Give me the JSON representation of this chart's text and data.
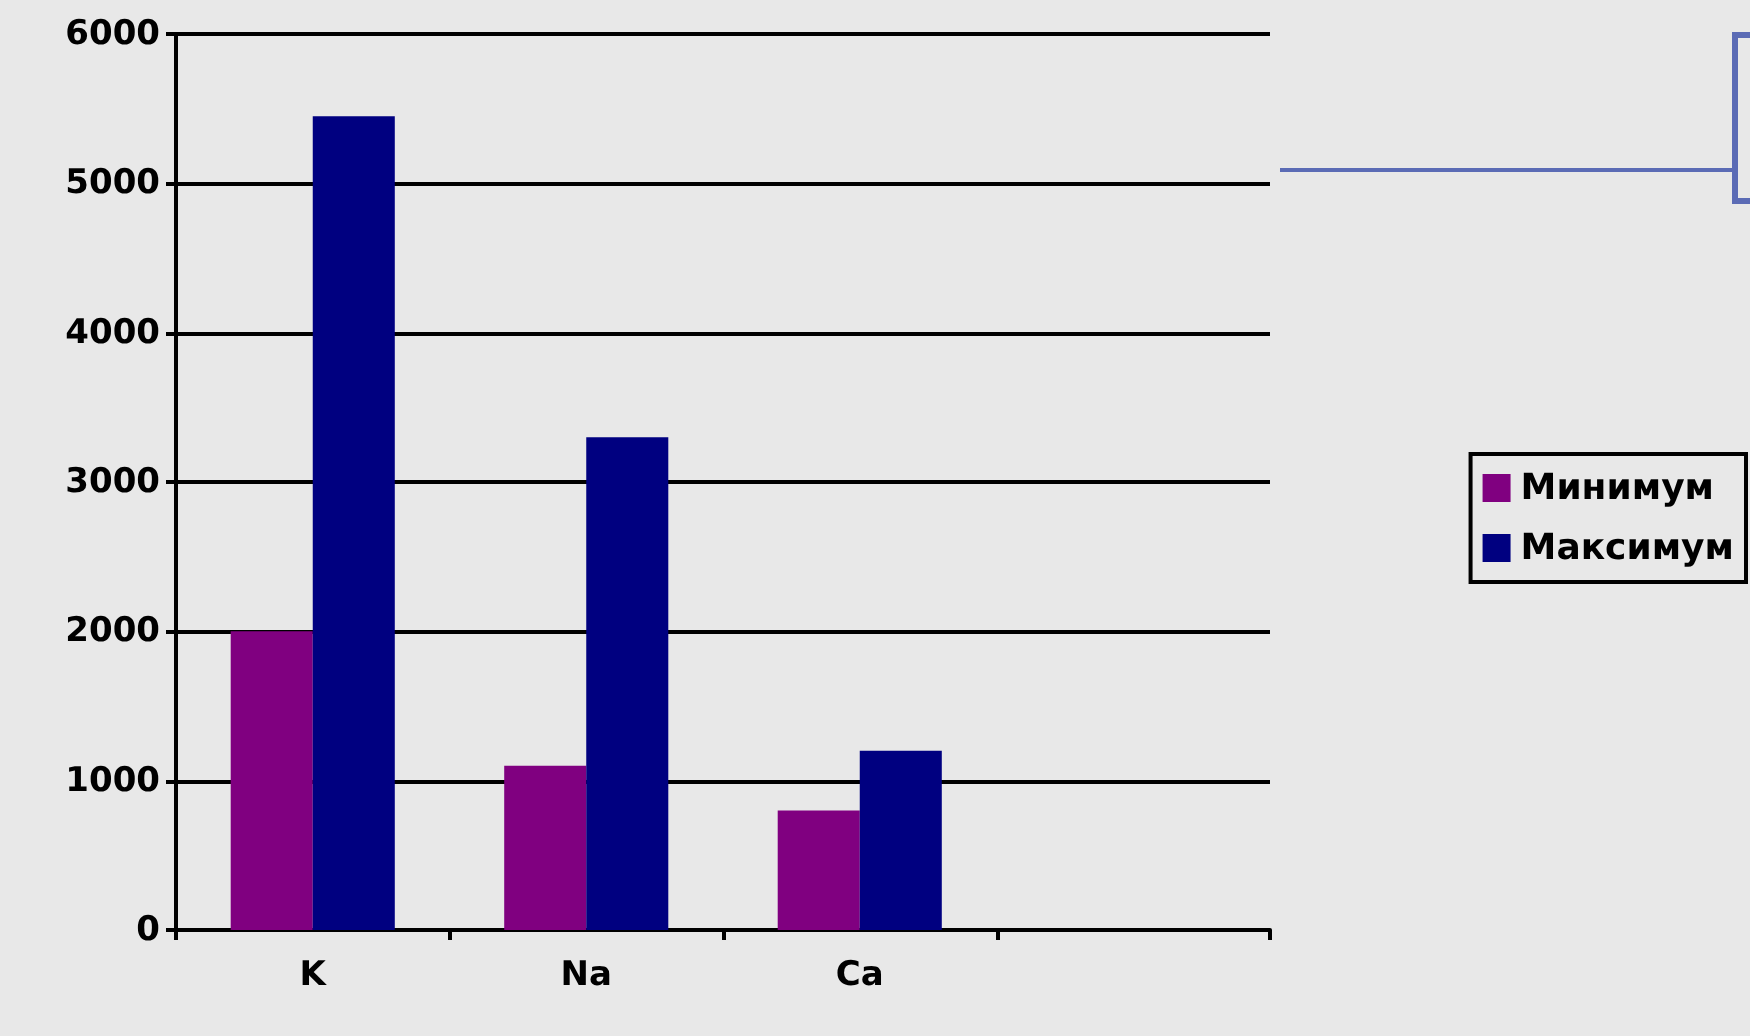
{
  "chart_data": {
    "type": "bar",
    "categories": [
      "K",
      "Na",
      "Ca",
      null
    ],
    "series": [
      {
        "name": "Минимум",
        "color": "#800080",
        "values": [
          2000,
          1100,
          800,
          null
        ]
      },
      {
        "name": "Максимум",
        "color": "#000080",
        "values": [
          5450,
          3300,
          1200,
          null
        ]
      }
    ],
    "ylim": [
      0,
      6000
    ],
    "yticks": [
      0,
      1000,
      2000,
      3000,
      4000,
      5000,
      6000
    ],
    "grid": "y",
    "legend": "right"
  }
}
